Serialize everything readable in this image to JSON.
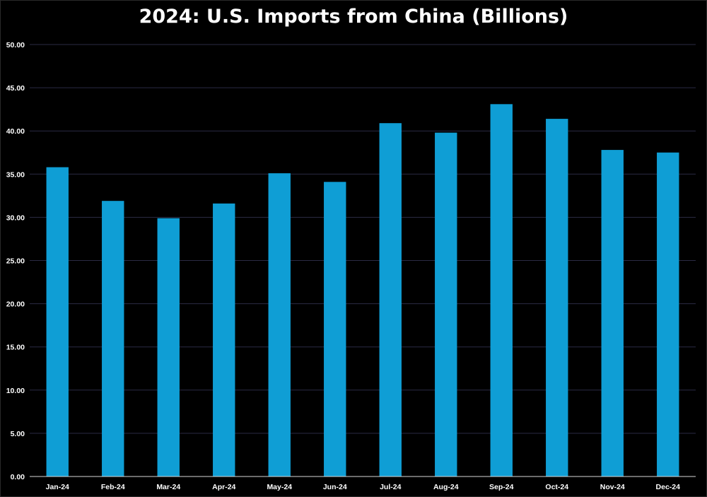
{
  "chart_data": {
    "type": "bar",
    "title": "2024: U.S. Imports from China (Billions)",
    "xlabel": "",
    "ylabel": "",
    "categories": [
      "Jan-24",
      "Feb-24",
      "Mar-24",
      "Apr-24",
      "May-24",
      "Jun-24",
      "Jul-24",
      "Aug-24",
      "Sep-24",
      "Oct-24",
      "Nov-24",
      "Dec-24"
    ],
    "values": [
      35.8,
      31.9,
      29.9,
      31.6,
      35.1,
      34.1,
      40.9,
      39.8,
      43.1,
      41.4,
      37.8,
      37.5
    ],
    "ylim": [
      0,
      50
    ],
    "yticks": [
      "0.00",
      "5.00",
      "10.00",
      "15.00",
      "20.00",
      "25.00",
      "30.00",
      "35.00",
      "40.00",
      "45.00",
      "50.00"
    ],
    "ytick_values": [
      0,
      5,
      10,
      15,
      20,
      25,
      30,
      35,
      40,
      45,
      50
    ],
    "grid": true,
    "legend": "none",
    "colors": {
      "bar": "#0f9ed5",
      "background": "#000000",
      "grid": "#2b2b44",
      "text": "#ffffff"
    }
  }
}
